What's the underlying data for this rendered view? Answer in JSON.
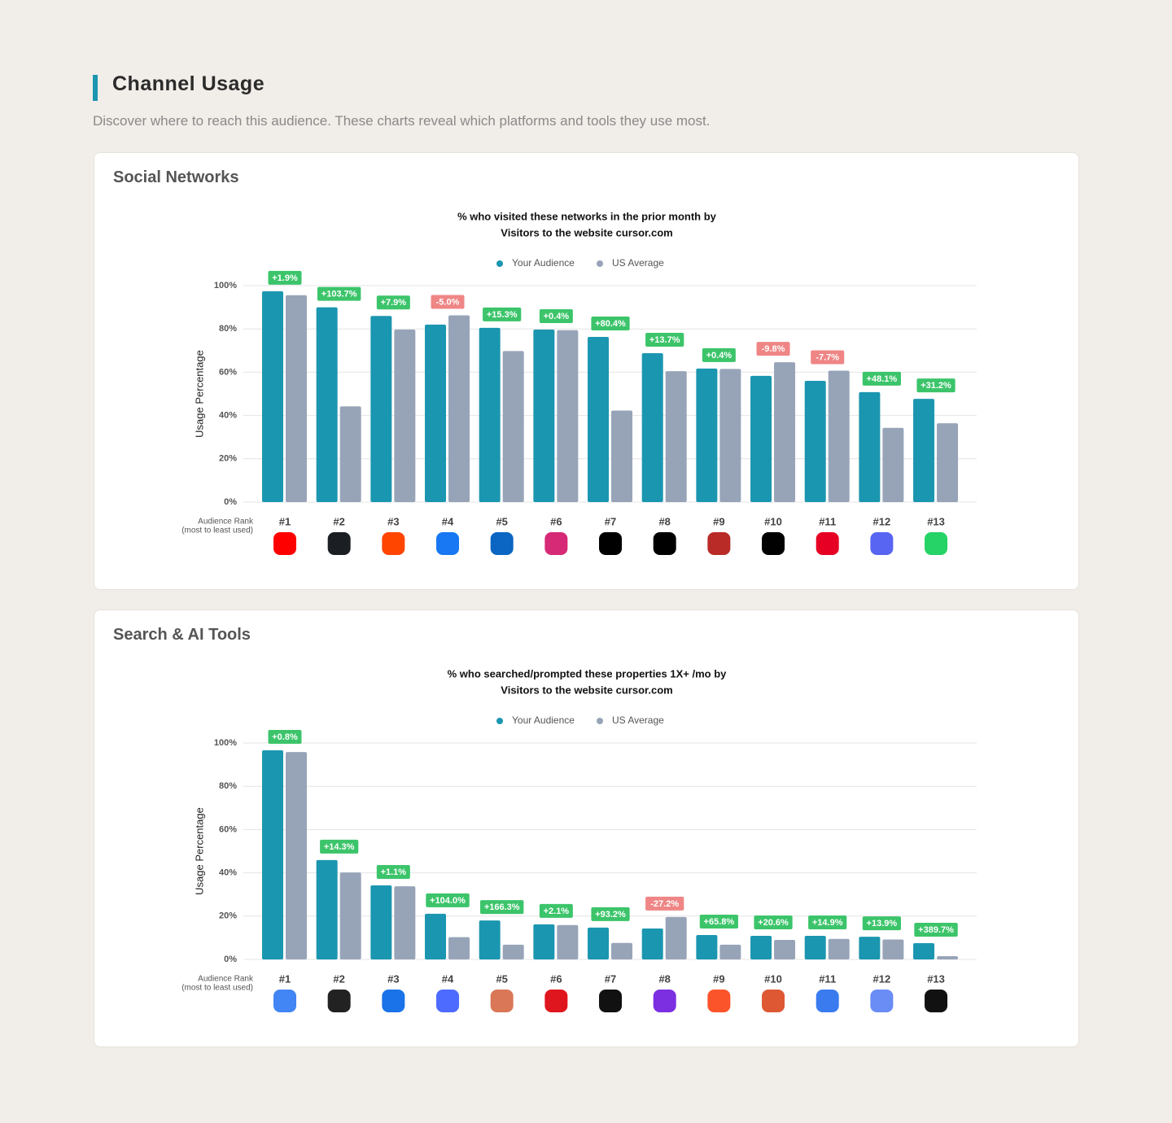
{
  "header": {
    "title": "Channel Usage",
    "subtitle": "Discover where to reach this audience. These charts reveal which platforms and tools they use most."
  },
  "cards": [
    {
      "title": "Social Networks"
    },
    {
      "title": "Search & AI Tools"
    }
  ],
  "chart_data": [
    {
      "type": "bar",
      "title": "% who visited these networks in the prior month by",
      "subtitle": "Visitors to the website cursor.com",
      "y_label": "Usage Percentage",
      "x_label": "Audience Rank",
      "x_label_note": "(most to least used)",
      "categories": [
        "#1",
        "#2",
        "#3",
        "#4",
        "#5",
        "#6",
        "#7",
        "#8",
        "#9",
        "#10",
        "#11",
        "#12",
        "#13"
      ],
      "series": [
        {
          "name": "Your Audience",
          "color": "#1b96b0",
          "values": [
            97.4,
            90,
            86,
            82,
            80.5,
            79.7,
            76.3,
            68.8,
            61.7,
            58.3,
            56,
            50.8,
            47.7
          ]
        },
        {
          "name": "US Average",
          "color": "#97a4b8",
          "values": [
            95.6,
            44.2,
            79.7,
            86.3,
            69.8,
            79.4,
            42.3,
            60.5,
            61.5,
            64.6,
            60.7,
            34.3,
            36.4
          ]
        }
      ],
      "annotations": [
        "+1.9%",
        "+103.7%",
        "+7.9%",
        "-5.0%",
        "+15.3%",
        "+0.4%",
        "+80.4%",
        "+13.7%",
        "+0.4%",
        "-9.8%",
        "-7.7%",
        "+48.1%",
        "+31.2%"
      ],
      "positive_color": "#3cc46a",
      "negative_color": "#ef8585",
      "ylim": [
        0,
        100
      ],
      "yticks": [
        {
          "value": 0,
          "label": "0%"
        },
        {
          "value": 20,
          "label": "20%"
        },
        {
          "value": 40,
          "label": "40%"
        },
        {
          "value": 60,
          "label": "60%"
        },
        {
          "value": 80,
          "label": "80%"
        },
        {
          "value": 100,
          "label": "100%"
        }
      ],
      "grid": true
    },
    {
      "type": "bar",
      "title": "% who searched/prompted these properties 1X+ /mo by",
      "subtitle": "Visitors to the website cursor.com",
      "y_label": "Usage Percentage",
      "x_label": "Audience Rank",
      "x_label_note": "(most to least used)",
      "categories": [
        "#1",
        "#2",
        "#3",
        "#4",
        "#5",
        "#6",
        "#7",
        "#8",
        "#9",
        "#10",
        "#11",
        "#12",
        "#13"
      ],
      "series": [
        {
          "name": "Your Audience",
          "color": "#1b96b0",
          "values": [
            96.6,
            45.9,
            34.2,
            21.1,
            18,
            16.2,
            14.7,
            14.3,
            11.3,
            10.9,
            10.9,
            10.5,
            7.5
          ]
        },
        {
          "name": "US Average",
          "color": "#97a4b8",
          "values": [
            95.8,
            40.2,
            33.8,
            10.3,
            6.8,
            15.9,
            7.6,
            19.6,
            6.8,
            9.0,
            9.5,
            9.2,
            1.5
          ]
        }
      ],
      "annotations": [
        "+0.8%",
        "+14.3%",
        "+1.1%",
        "+104.0%",
        "+166.3%",
        "+2.1%",
        "+93.2%",
        "-27.2%",
        "+65.8%",
        "+20.6%",
        "+14.9%",
        "+13.9%",
        "+389.7%"
      ],
      "positive_color": "#3cc46a",
      "negative_color": "#ef8585",
      "ylim": [
        0,
        100
      ],
      "yticks": [
        {
          "value": 0,
          "label": "0%"
        },
        {
          "value": 20,
          "label": "20%"
        },
        {
          "value": 40,
          "label": "40%"
        },
        {
          "value": 60,
          "label": "60%"
        },
        {
          "value": 80,
          "label": "80%"
        },
        {
          "value": 100,
          "label": "100%"
        }
      ],
      "grid": true
    }
  ]
}
